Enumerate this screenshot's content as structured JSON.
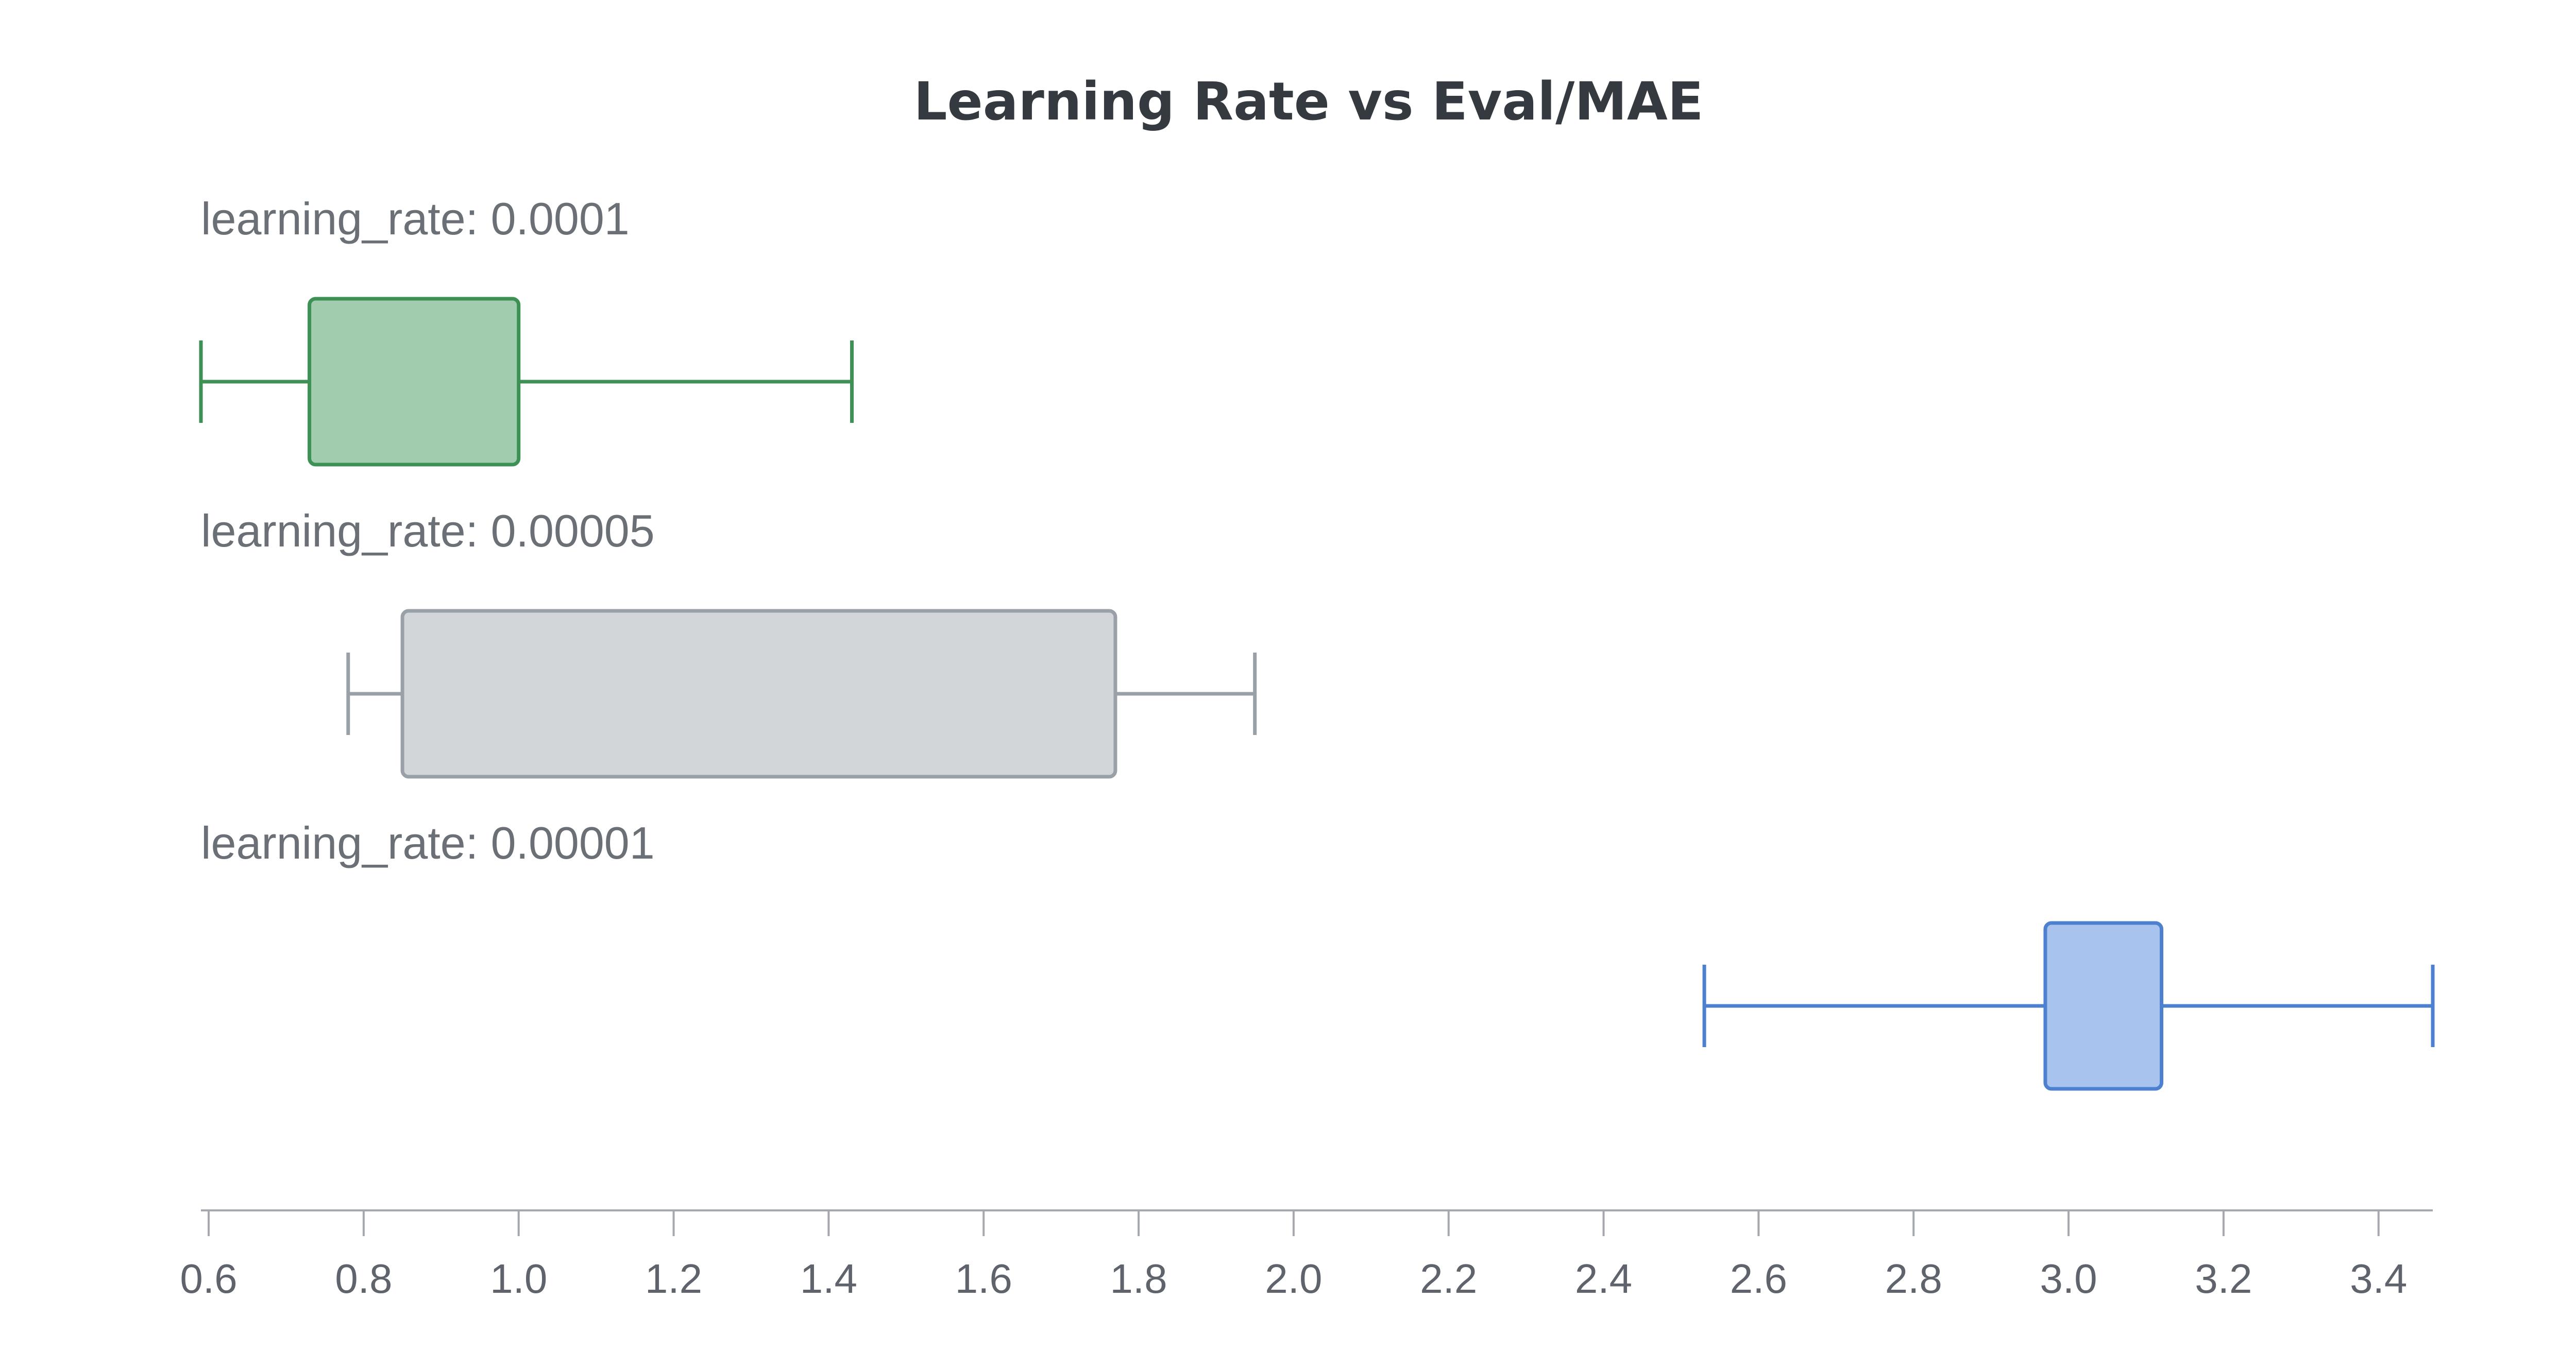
{
  "chart_data": {
    "type": "box",
    "title": "Learning Rate vs Eval/MAE",
    "xlabel": "",
    "ylabel": "",
    "orientation": "horizontal",
    "xlim": [
      0.59,
      3.47
    ],
    "ticks": [
      0.6,
      0.8,
      1.0,
      1.2,
      1.4,
      1.6,
      1.8,
      2.0,
      2.2,
      2.4,
      2.6,
      2.8,
      3.0,
      3.2,
      3.4
    ],
    "tick_labels": [
      "0.6",
      "0.8",
      "1.0",
      "1.2",
      "1.4",
      "1.6",
      "1.8",
      "2.0",
      "2.2",
      "2.4",
      "2.6",
      "2.8",
      "3.0",
      "3.2",
      "3.4"
    ],
    "grid": false,
    "groups": [
      {
        "label": "learning_rate: 0.0001",
        "min": 0.59,
        "q1": 0.73,
        "q3": 1.0,
        "max": 1.43,
        "color": "#3d9154",
        "fill": "#a1ccad"
      },
      {
        "label": "learning_rate: 0.00005",
        "min": 0.78,
        "q1": 0.85,
        "q3": 1.77,
        "max": 1.95,
        "color": "#9aa0a7",
        "fill": "#d2d6d9"
      },
      {
        "label": "learning_rate: 0.00001",
        "min": 2.53,
        "q1": 2.97,
        "q3": 3.12,
        "max": 3.47,
        "color": "#4d80cf",
        "fill": "#a9c3ef"
      }
    ],
    "axis_color": "#a5a8ad"
  }
}
